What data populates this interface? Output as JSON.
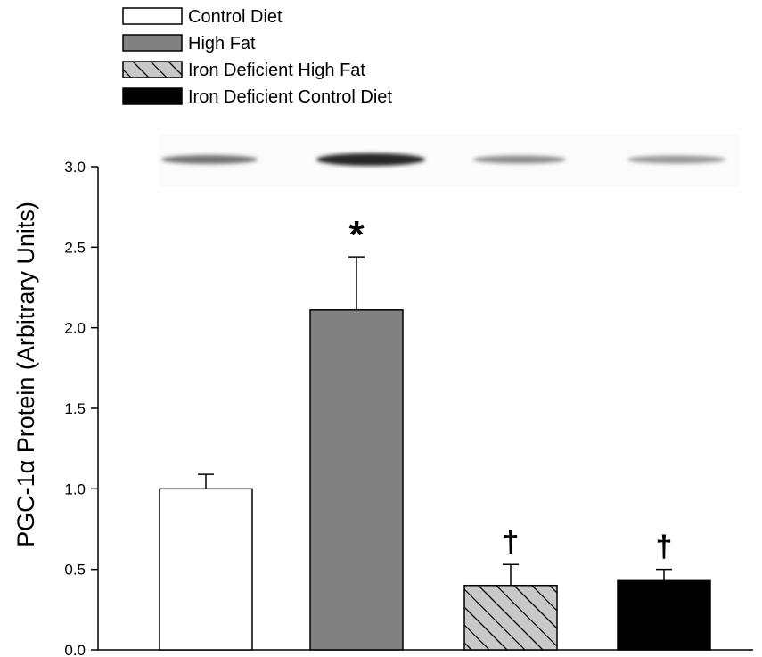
{
  "chart_data": {
    "type": "bar",
    "categories": [
      "Control Diet",
      "High Fat",
      "Iron Deficient High Fat",
      "Iron Deficient Control Diet"
    ],
    "values": [
      1.0,
      2.11,
      0.4,
      0.43
    ],
    "errors": [
      0.09,
      0.33,
      0.13,
      0.07
    ],
    "annotations": [
      "",
      "*",
      "†",
      "†"
    ],
    "ylabel": "PGC-1α Protein (Arbitrary Units)",
    "ylim": [
      0,
      3.0
    ],
    "yticks": [
      "0.0",
      "0.5",
      "1.0",
      "1.5",
      "2.0",
      "2.5",
      "3.0"
    ],
    "yticks_values": [
      0,
      0.5,
      1.0,
      1.5,
      2.0,
      2.5,
      3.0
    ],
    "legend_position": "top-left",
    "grid": false,
    "blot_band_intensity": [
      0.55,
      0.85,
      0.45,
      0.4
    ],
    "series_styles": [
      {
        "fill": "#ffffff",
        "pattern": "none"
      },
      {
        "fill": "#808080",
        "pattern": "none"
      },
      {
        "fill": "#c8c8c8",
        "pattern": "diagonal-hatch"
      },
      {
        "fill": "#000000",
        "pattern": "none"
      }
    ]
  }
}
